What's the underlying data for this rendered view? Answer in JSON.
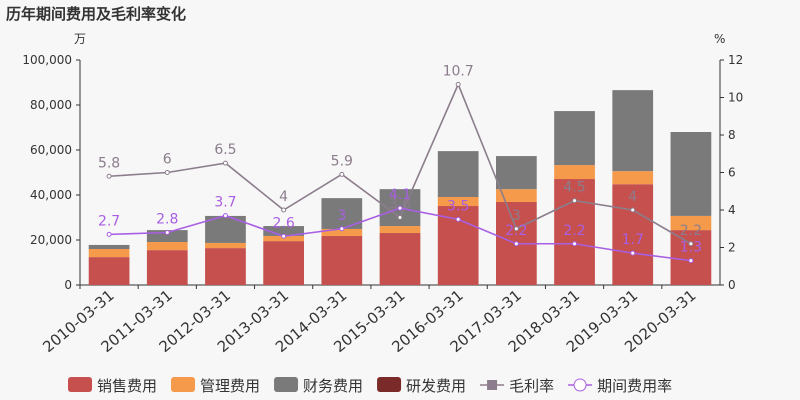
{
  "chart_data": {
    "type": "bar_line",
    "title": "历年期间费用及毛利率变化",
    "y_unit": "万",
    "y2_unit": "%",
    "categories": [
      "2010-03-31",
      "2011-03-31",
      "2012-03-31",
      "2013-03-31",
      "2014-03-31",
      "2015-03-31",
      "2016-03-31",
      "2017-03-31",
      "2018-03-31",
      "2019-03-31",
      "2020-03-31"
    ],
    "ylim": [
      0,
      100000
    ],
    "yticks": [
      0,
      {
        "value": 20000,
        "label": "20,000"
      },
      {
        "value": 40000,
        "label": "40,000"
      },
      {
        "value": 60000,
        "label": "60,000"
      },
      {
        "value": 80000,
        "label": "80,000"
      },
      {
        "value": 100000,
        "label": "100,000"
      }
    ],
    "y2lim": [
      0,
      12
    ],
    "y2ticks": [
      0,
      2,
      4,
      6,
      8,
      10,
      12
    ],
    "series": [
      {
        "name": "销售费用",
        "kind": "bar",
        "color": "#c5504e",
        "values": [
          12400,
          15500,
          16400,
          19500,
          21800,
          23100,
          35100,
          36900,
          47100,
          44800,
          24400
        ]
      },
      {
        "name": "管理费用",
        "kind": "bar",
        "color": "#f59a4a",
        "values": [
          3600,
          3600,
          2300,
          2300,
          3100,
          3100,
          4000,
          5700,
          6200,
          5800,
          6300
        ]
      },
      {
        "name": "财务费用",
        "kind": "bar",
        "color": "#7a7a7a",
        "values": [
          1800,
          5300,
          12000,
          4400,
          13700,
          16400,
          20400,
          14700,
          24000,
          36000,
          37300
        ]
      },
      {
        "name": "研发费用",
        "kind": "bar",
        "color": "#7b2a2a",
        "values": [
          0,
          0,
          0,
          0,
          0,
          0,
          0,
          0,
          0,
          0,
          0
        ]
      },
      {
        "name": "毛利率",
        "kind": "line",
        "axis": "y2",
        "color": "#8c7d8c",
        "values": [
          5.8,
          6,
          6.5,
          4,
          5.9,
          3.6,
          10.7,
          3,
          4.5,
          4,
          2.2
        ]
      },
      {
        "name": "期间费用率",
        "kind": "line",
        "axis": "y2",
        "color": "#a95fe3",
        "values": [
          2.7,
          2.8,
          3.7,
          2.6,
          3,
          4.1,
          3.5,
          2.2,
          2.2,
          1.7,
          1.3
        ]
      }
    ]
  }
}
